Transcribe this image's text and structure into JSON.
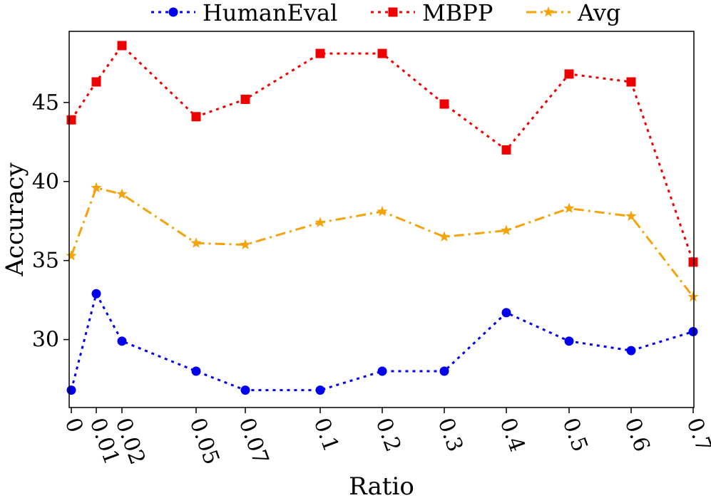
{
  "chart_data": {
    "type": "line",
    "title": "",
    "xlabel": "Ratio",
    "ylabel": "Accuracy",
    "x": [
      0,
      0.01,
      0.02,
      0.05,
      0.07,
      0.1,
      0.2,
      0.3,
      0.4,
      0.5,
      0.6,
      0.7
    ],
    "x_tick_labels": [
      "0",
      "0.01",
      "0.02",
      "0.05",
      "0.07",
      "0.1",
      "0.2",
      "0.3",
      "0.4",
      "0.5",
      "0.6",
      "0.7"
    ],
    "x_scale": "categorical-spaced",
    "y_ticks": [
      30,
      35,
      40,
      45
    ],
    "y_tick_labels": [
      "30",
      "35",
      "40",
      "45"
    ],
    "ylim": [
      25.7,
      49.5
    ],
    "grid": false,
    "legend_position": "top-center",
    "series": [
      {
        "name": "HumanEval",
        "color": "#0000ee",
        "marker": "circle",
        "line_style": "dotted",
        "values": [
          26.8,
          32.9,
          29.9,
          28.0,
          26.8,
          26.8,
          28.0,
          28.0,
          31.7,
          29.9,
          29.3,
          30.5
        ]
      },
      {
        "name": "MBPP",
        "color": "#ee0000",
        "marker": "square",
        "line_style": "dotted",
        "values": [
          43.9,
          46.3,
          48.6,
          44.1,
          45.2,
          48.1,
          48.1,
          44.9,
          42.0,
          46.8,
          46.3,
          34.9
        ]
      },
      {
        "name": "Avg",
        "color": "#f5a30a",
        "marker": "star",
        "line_style": "dashdot",
        "values": [
          35.3,
          39.6,
          39.2,
          36.1,
          36.0,
          37.4,
          38.1,
          36.5,
          36.9,
          38.3,
          37.8,
          32.7
        ]
      }
    ]
  }
}
